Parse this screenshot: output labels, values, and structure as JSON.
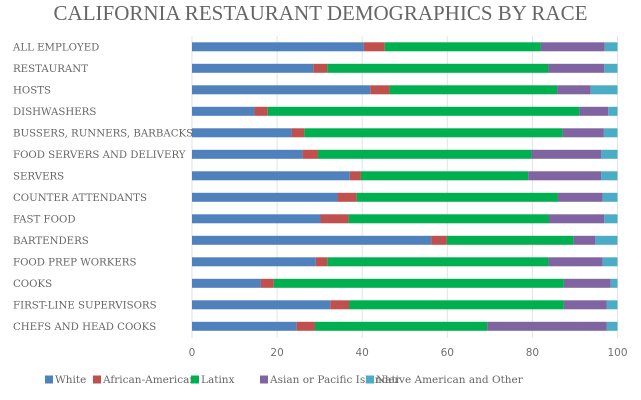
{
  "chart_data": {
    "type": "bar",
    "orientation": "horizontal",
    "stacked": true,
    "title": "CALIFORNIA RESTAURANT DEMOGRAPHICS BY RACE",
    "xlabel": "",
    "ylabel": "",
    "xlim": [
      0,
      100
    ],
    "xticks": [
      0,
      20,
      40,
      60,
      80,
      100
    ],
    "grid": true,
    "legend_position": "bottom",
    "categories": [
      "ALL EMPLOYED",
      "RESTAURANT",
      "HOSTS",
      "DISHWASHERS",
      "BUSSERS, RUNNERS, BARBACKS",
      "FOOD SERVERS AND DELIVERY",
      "SERVERS",
      "COUNTER ATTENDANTS",
      "FAST FOOD",
      "BARTENDERS",
      "FOOD PREP WORKERS",
      "COOKS",
      "FIRST-LINE SUPERVISORS",
      "CHEFS AND HEAD COOKS"
    ],
    "series": [
      {
        "name": "White",
        "color": "#4f81bd",
        "values": [
          40.4,
          28.5,
          41.9,
          14.7,
          23.4,
          26.0,
          37.1,
          34.2,
          30.2,
          56.2,
          29.1,
          16.2,
          32.5,
          24.6
        ]
      },
      {
        "name": "African-American",
        "color": "#c0504d",
        "values": [
          4.9,
          3.3,
          4.5,
          3.1,
          3.0,
          3.6,
          2.6,
          4.5,
          6.6,
          3.7,
          2.7,
          3.0,
          4.4,
          4.3
        ]
      },
      {
        "name": "Latinx",
        "color": "#00b050",
        "values": [
          36.7,
          52.0,
          39.4,
          73.3,
          60.7,
          50.2,
          39.3,
          47.3,
          47.1,
          29.8,
          52.0,
          68.2,
          50.5,
          40.5
        ]
      },
      {
        "name": "Asian or Pacific Islander",
        "color": "#8064a2",
        "values": [
          15.0,
          13.1,
          7.9,
          6.7,
          9.7,
          16.4,
          17.2,
          10.5,
          13.0,
          5.1,
          12.7,
          11.0,
          10.1,
          28.1
        ]
      },
      {
        "name": "Native American and Other",
        "color": "#4bacc6",
        "values": [
          3.0,
          3.1,
          6.3,
          2.2,
          3.2,
          3.8,
          3.8,
          3.5,
          3.1,
          5.2,
          3.5,
          1.6,
          2.5,
          2.5
        ]
      }
    ]
  }
}
